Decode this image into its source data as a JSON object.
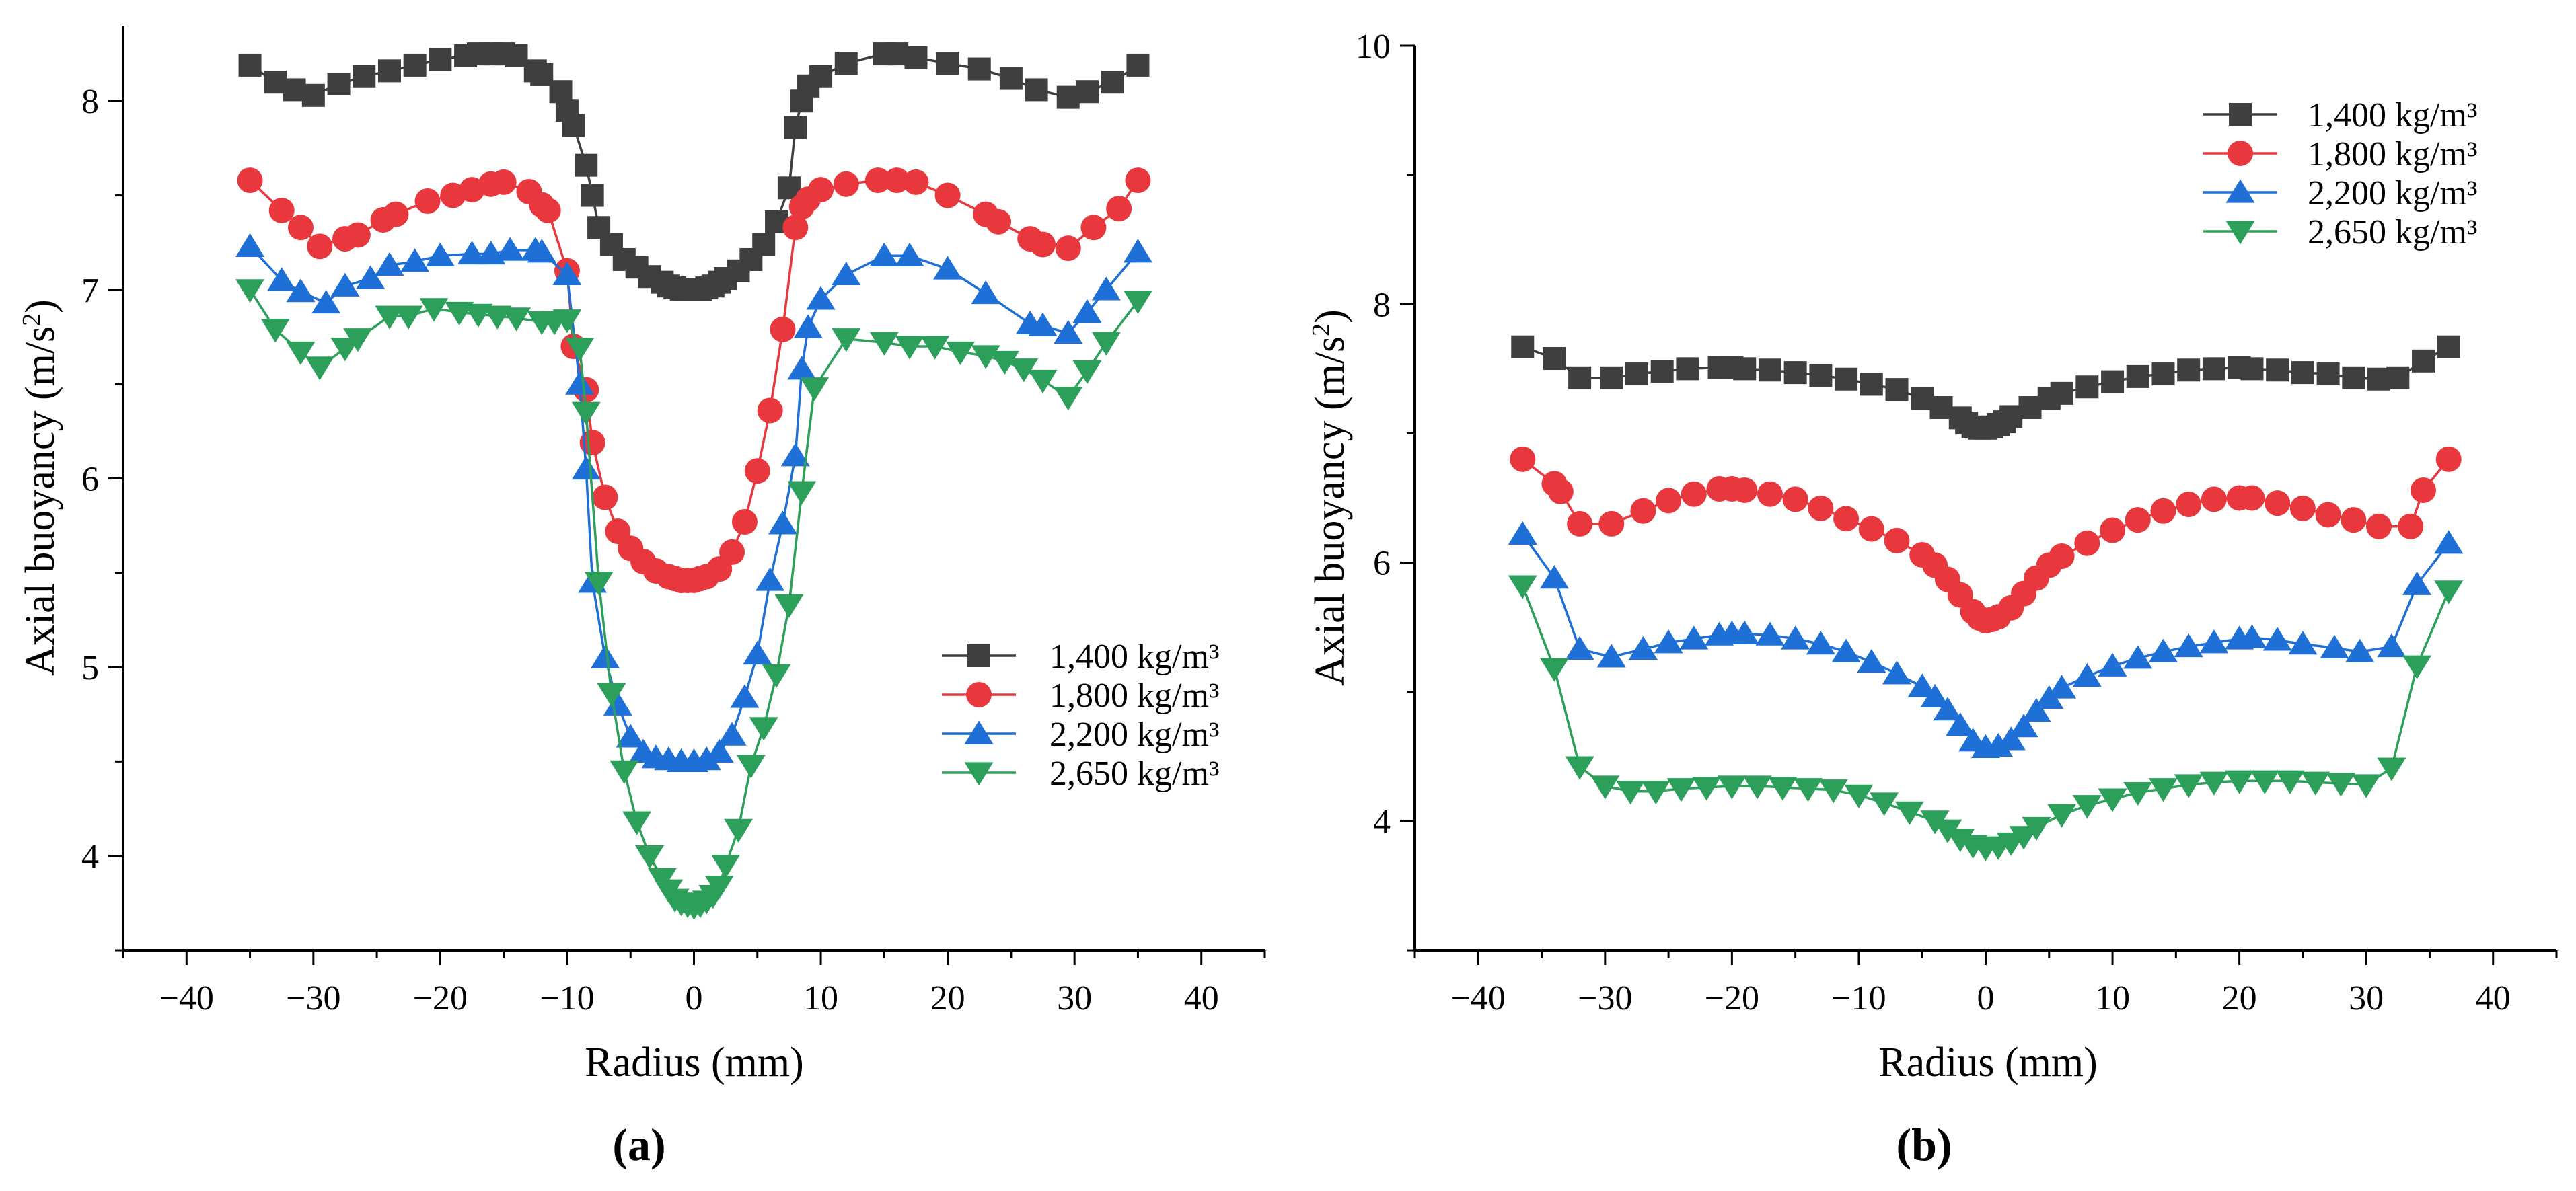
{
  "chart_data": [
    {
      "type": "line",
      "panel": "a",
      "panel_label": "(a)",
      "xlabel": "Radius (mm)",
      "ylabel_main": "Axial buoyancy (m/s",
      "ylabel_sup": "2",
      "ylabel_end": ")",
      "xlim": [
        -45,
        45
      ],
      "ylim": [
        3.5,
        8.4
      ],
      "xticks": [
        -40,
        -30,
        -20,
        -10,
        0,
        10,
        20,
        30,
        40
      ],
      "yticks": [
        4,
        5,
        6,
        7,
        8
      ],
      "legend_position": "lower-right",
      "series": [
        {
          "name": "1,400 kg/m³",
          "color": "#3f3f3f",
          "marker": "square",
          "x": [
            -35,
            -33,
            -31.5,
            -30,
            -28,
            -26,
            -24,
            -22,
            -20,
            -18,
            -17,
            -16,
            -15,
            -14,
            -12.5,
            -12,
            -10.5,
            -10,
            -9.5,
            -8.5,
            -8,
            -7.5,
            -6.5,
            -5.5,
            -4.5,
            -3.5,
            -2.5,
            -2,
            -1.5,
            -1,
            -0.5,
            0,
            0.5,
            1,
            1.5,
            2,
            2.5,
            3.5,
            4.5,
            5.5,
            6.5,
            7.5,
            8,
            8.5,
            9,
            10,
            12,
            15,
            16,
            17.5,
            20,
            22.5,
            25,
            27,
            29.5,
            31,
            33,
            35
          ],
          "y": [
            8.19,
            8.1,
            8.06,
            8.03,
            8.09,
            8.13,
            8.16,
            8.19,
            8.22,
            8.24,
            8.25,
            8.25,
            8.25,
            8.24,
            8.16,
            8.14,
            8.05,
            7.95,
            7.87,
            7.66,
            7.5,
            7.33,
            7.24,
            7.16,
            7.12,
            7.07,
            7.04,
            7.02,
            7.01,
            7.0,
            7.0,
            7.0,
            7.0,
            7.01,
            7.02,
            7.04,
            7.06,
            7.1,
            7.16,
            7.24,
            7.36,
            7.54,
            7.86,
            8.0,
            8.08,
            8.13,
            8.2,
            8.25,
            8.25,
            8.23,
            8.2,
            8.17,
            8.12,
            8.06,
            8.02,
            8.05,
            8.1,
            8.19
          ]
        },
        {
          "name": "1,800 kg/m³",
          "color": "#e8383d",
          "marker": "circle",
          "x": [
            -35,
            -32.5,
            -31,
            -29.5,
            -27.5,
            -26.5,
            -24.5,
            -23.5,
            -21,
            -19,
            -17.5,
            -16,
            -15,
            -13,
            -12,
            -11.5,
            -10,
            -9.5,
            -8.5,
            -8,
            -7,
            -6,
            -5,
            -4,
            -3,
            -2,
            -1.5,
            -1,
            -0.5,
            0,
            0.5,
            1,
            2,
            3,
            4,
            5,
            6,
            7,
            8,
            8.5,
            9,
            10,
            12,
            14.5,
            16,
            17.5,
            20,
            23,
            24,
            26.5,
            27.5,
            29.5,
            31.5,
            33.5,
            35
          ],
          "y": [
            7.58,
            7.42,
            7.33,
            7.23,
            7.27,
            7.29,
            7.37,
            7.4,
            7.47,
            7.5,
            7.53,
            7.56,
            7.57,
            7.52,
            7.45,
            7.42,
            7.1,
            6.7,
            6.47,
            6.19,
            5.9,
            5.72,
            5.63,
            5.56,
            5.51,
            5.48,
            5.47,
            5.46,
            5.46,
            5.46,
            5.47,
            5.48,
            5.52,
            5.61,
            5.77,
            6.04,
            6.36,
            6.79,
            7.33,
            7.44,
            7.48,
            7.53,
            7.56,
            7.58,
            7.58,
            7.57,
            7.5,
            7.4,
            7.36,
            7.27,
            7.24,
            7.22,
            7.33,
            7.43,
            7.58
          ]
        },
        {
          "name": "2,200 kg/m³",
          "color": "#1e6fd6",
          "marker": "triangle-up",
          "x": [
            -35,
            -32.5,
            -31,
            -29,
            -27.5,
            -25.5,
            -24,
            -22,
            -20,
            -17.5,
            -16,
            -14.5,
            -12.5,
            -12,
            -10,
            -9,
            -8.5,
            -8,
            -7,
            -6,
            -5,
            -4,
            -3,
            -2,
            -1,
            0,
            1,
            2,
            3,
            4,
            5,
            6,
            7,
            8,
            8.5,
            9,
            10,
            12,
            15,
            17,
            20,
            23,
            26.5,
            27.5,
            29.5,
            31,
            32.5,
            35
          ],
          "y": [
            7.23,
            7.05,
            6.99,
            6.93,
            7.02,
            7.06,
            7.13,
            7.15,
            7.18,
            7.19,
            7.19,
            7.21,
            7.21,
            7.2,
            7.08,
            6.5,
            6.05,
            5.45,
            5.05,
            4.8,
            4.63,
            4.55,
            4.52,
            4.51,
            4.5,
            4.5,
            4.51,
            4.55,
            4.64,
            4.84,
            5.07,
            5.46,
            5.76,
            6.12,
            6.58,
            6.8,
            6.95,
            7.08,
            7.18,
            7.18,
            7.11,
            6.98,
            6.82,
            6.81,
            6.77,
            6.88,
            7.0,
            7.2
          ]
        },
        {
          "name": "2,650 kg/m³",
          "color": "#2ca05a",
          "marker": "triangle-down",
          "x": [
            -35,
            -33,
            -31,
            -29.5,
            -27.5,
            -26.5,
            -24,
            -22.5,
            -20.5,
            -18.5,
            -17,
            -15.5,
            -14,
            -12,
            -11,
            -10,
            -9,
            -8.5,
            -7.5,
            -6.5,
            -5.5,
            -4.5,
            -3.5,
            -2.5,
            -2,
            -1.5,
            -1,
            -0.5,
            0,
            0.5,
            1,
            1.5,
            2,
            2.5,
            3.5,
            4.5,
            5.5,
            6.5,
            7.5,
            8.5,
            9.5,
            12,
            15,
            17,
            19,
            21,
            23,
            24.5,
            26,
            27.5,
            29.5,
            31,
            32.5,
            35
          ],
          "y": [
            7.0,
            6.79,
            6.67,
            6.59,
            6.69,
            6.74,
            6.86,
            6.86,
            6.9,
            6.88,
            6.87,
            6.86,
            6.85,
            6.83,
            6.83,
            6.84,
            6.69,
            6.35,
            5.45,
            4.86,
            4.45,
            4.18,
            4.0,
            3.88,
            3.82,
            3.77,
            3.75,
            3.74,
            3.73,
            3.74,
            3.76,
            3.79,
            3.84,
            3.95,
            4.14,
            4.48,
            4.68,
            4.96,
            5.33,
            5.93,
            6.48,
            6.74,
            6.72,
            6.7,
            6.7,
            6.67,
            6.65,
            6.62,
            6.58,
            6.52,
            6.43,
            6.57,
            6.72,
            6.94
          ]
        }
      ]
    },
    {
      "type": "line",
      "panel": "b",
      "panel_label": "(b)",
      "xlabel": "Radius (mm)",
      "ylabel_main": "Axial buoyancy (m/s",
      "ylabel_sup": "2",
      "ylabel_end": ")",
      "xlim": [
        -45,
        45
      ],
      "ylim": [
        3.0,
        10.0
      ],
      "xticks": [
        -40,
        -30,
        -20,
        -10,
        0,
        10,
        20,
        30,
        40
      ],
      "yticks": [
        4,
        6,
        8,
        10
      ],
      "legend_position": "top-right",
      "series": [
        {
          "name": "1,400 kg/m³",
          "color": "#3f3f3f",
          "marker": "square",
          "x": [
            -36.5,
            -34,
            -32,
            -29.5,
            -27.5,
            -25.5,
            -23.5,
            -21,
            -20,
            -19,
            -17,
            -15,
            -13,
            -11,
            -9,
            -7,
            -5,
            -3.5,
            -2,
            -1.5,
            -1,
            -0.5,
            0,
            0.5,
            1,
            1.5,
            2,
            3.5,
            5,
            6,
            8,
            10,
            12,
            14,
            16,
            18,
            20,
            21,
            23,
            25,
            27,
            29,
            31,
            32.5,
            34.5,
            36.5
          ],
          "y": [
            7.67,
            7.58,
            7.43,
            7.43,
            7.46,
            7.48,
            7.5,
            7.51,
            7.51,
            7.5,
            7.49,
            7.47,
            7.45,
            7.42,
            7.38,
            7.34,
            7.27,
            7.2,
            7.12,
            7.08,
            7.05,
            7.04,
            7.04,
            7.05,
            7.07,
            7.09,
            7.13,
            7.2,
            7.27,
            7.31,
            7.36,
            7.4,
            7.44,
            7.46,
            7.49,
            7.5,
            7.51,
            7.5,
            7.49,
            7.47,
            7.46,
            7.43,
            7.42,
            7.43,
            7.56,
            7.67
          ]
        },
        {
          "name": "1,800 kg/m³",
          "color": "#e8383d",
          "marker": "circle",
          "x": [
            -36.5,
            -34,
            -33.5,
            -32,
            -29.5,
            -27,
            -25,
            -23,
            -21,
            -20,
            -19,
            -17,
            -15,
            -13,
            -11,
            -9,
            -7,
            -5,
            -4,
            -3,
            -2,
            -1,
            -0.5,
            0,
            0.5,
            1,
            2,
            3,
            4,
            5,
            6,
            8,
            10,
            12,
            14,
            16,
            18,
            20,
            21,
            23,
            25,
            27,
            29,
            31,
            33.5,
            34.5,
            36.5
          ],
          "y": [
            6.8,
            6.61,
            6.55,
            6.3,
            6.3,
            6.4,
            6.48,
            6.53,
            6.57,
            6.57,
            6.56,
            6.53,
            6.49,
            6.42,
            6.34,
            6.26,
            6.17,
            6.06,
            5.98,
            5.87,
            5.75,
            5.62,
            5.57,
            5.55,
            5.56,
            5.58,
            5.65,
            5.76,
            5.88,
            5.98,
            6.05,
            6.15,
            6.25,
            6.33,
            6.4,
            6.45,
            6.49,
            6.5,
            6.5,
            6.46,
            6.42,
            6.37,
            6.33,
            6.28,
            6.28,
            6.56,
            6.8
          ]
        },
        {
          "name": "2,200 kg/m³",
          "color": "#1e6fd6",
          "marker": "triangle-up",
          "x": [
            -36.5,
            -34,
            -32,
            -29.5,
            -27,
            -25,
            -23,
            -21,
            -20,
            -19,
            -17,
            -15,
            -13,
            -11,
            -9,
            -7,
            -5,
            -4,
            -3,
            -2,
            -1,
            0,
            1,
            2,
            3,
            4,
            5,
            6,
            8,
            10,
            12,
            14,
            16,
            18,
            20,
            21,
            23,
            25,
            27.5,
            29.5,
            32,
            34,
            36.5
          ],
          "y": [
            6.22,
            5.88,
            5.33,
            5.27,
            5.33,
            5.38,
            5.41,
            5.44,
            5.45,
            5.45,
            5.44,
            5.41,
            5.37,
            5.31,
            5.23,
            5.14,
            5.04,
            4.96,
            4.86,
            4.74,
            4.62,
            4.57,
            4.58,
            4.63,
            4.73,
            4.85,
            4.95,
            5.03,
            5.12,
            5.2,
            5.26,
            5.31,
            5.35,
            5.38,
            5.41,
            5.42,
            5.4,
            5.37,
            5.34,
            5.31,
            5.35,
            5.83,
            6.15
          ]
        },
        {
          "name": "2,650 kg/m³",
          "color": "#2ca05a",
          "marker": "triangle-down",
          "x": [
            -36.5,
            -34,
            -32,
            -30,
            -28,
            -26,
            -24,
            -22,
            -20,
            -18,
            -16,
            -14,
            -12,
            -10,
            -8,
            -6,
            -4,
            -3,
            -2,
            -1,
            0,
            1,
            2,
            3,
            4,
            6,
            8,
            10,
            12,
            14,
            16,
            18,
            20,
            22,
            24,
            26,
            28,
            30,
            32,
            34,
            36.5
          ],
          "y": [
            5.82,
            5.18,
            4.42,
            4.27,
            4.23,
            4.23,
            4.25,
            4.26,
            4.27,
            4.27,
            4.26,
            4.25,
            4.24,
            4.2,
            4.14,
            4.07,
            4.0,
            3.93,
            3.86,
            3.81,
            3.79,
            3.8,
            3.83,
            3.88,
            3.95,
            4.05,
            4.12,
            4.17,
            4.22,
            4.25,
            4.28,
            4.3,
            4.31,
            4.31,
            4.31,
            4.3,
            4.29,
            4.28,
            4.41,
            5.2,
            5.78
          ]
        }
      ]
    }
  ]
}
